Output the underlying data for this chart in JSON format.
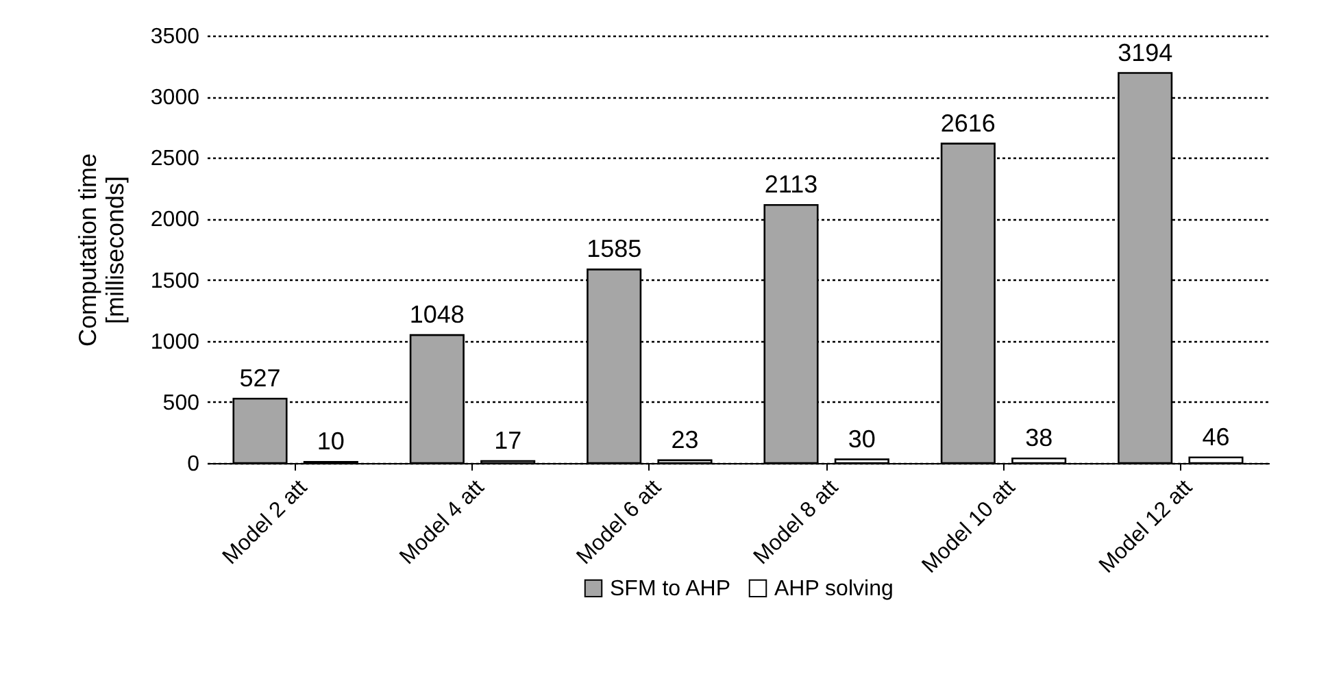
{
  "chart_data": {
    "type": "bar",
    "ylabel": "Computation time\n[milliseconds]",
    "categories": [
      "Model 2 att",
      "Model 4 att",
      "Model 6 att",
      "Model 8 att",
      "Model 10 att",
      "Model 12 att"
    ],
    "series": [
      {
        "name": "SFM to AHP",
        "color": "#a6a6a6",
        "values": [
          527,
          1048,
          1585,
          2113,
          2616,
          3194
        ]
      },
      {
        "name": "AHP solving",
        "color": "#ffffff",
        "values": [
          10,
          17,
          23,
          30,
          38,
          46
        ]
      }
    ],
    "ylim": [
      0,
      3500
    ],
    "yticks": [
      0,
      500,
      1000,
      1500,
      2000,
      2500,
      3000,
      3500
    ],
    "grid": "y",
    "legend": "bottom",
    "data_labels": true
  }
}
